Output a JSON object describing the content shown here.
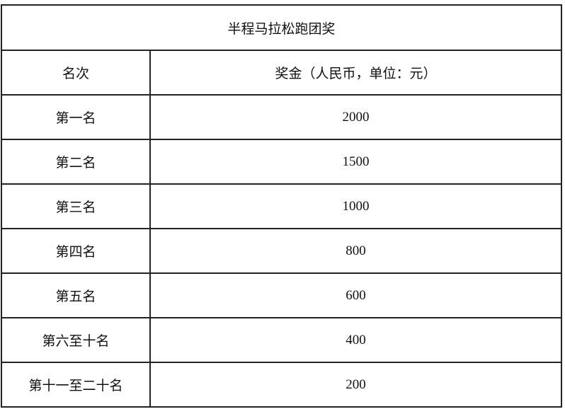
{
  "table": {
    "title": "半程马拉松跑团奖",
    "headers": [
      "名次",
      "奖金（人民币，单位：元）"
    ],
    "rows": [
      {
        "rank": "第一名",
        "prize": "2000"
      },
      {
        "rank": "第二名",
        "prize": "1500"
      },
      {
        "rank": "第三名",
        "prize": "1000"
      },
      {
        "rank": "第四名",
        "prize": "800"
      },
      {
        "rank": "第五名",
        "prize": "600"
      },
      {
        "rank": "第六至十名",
        "prize": "400"
      },
      {
        "rank": "第十一至二十名",
        "prize": "200"
      }
    ]
  }
}
